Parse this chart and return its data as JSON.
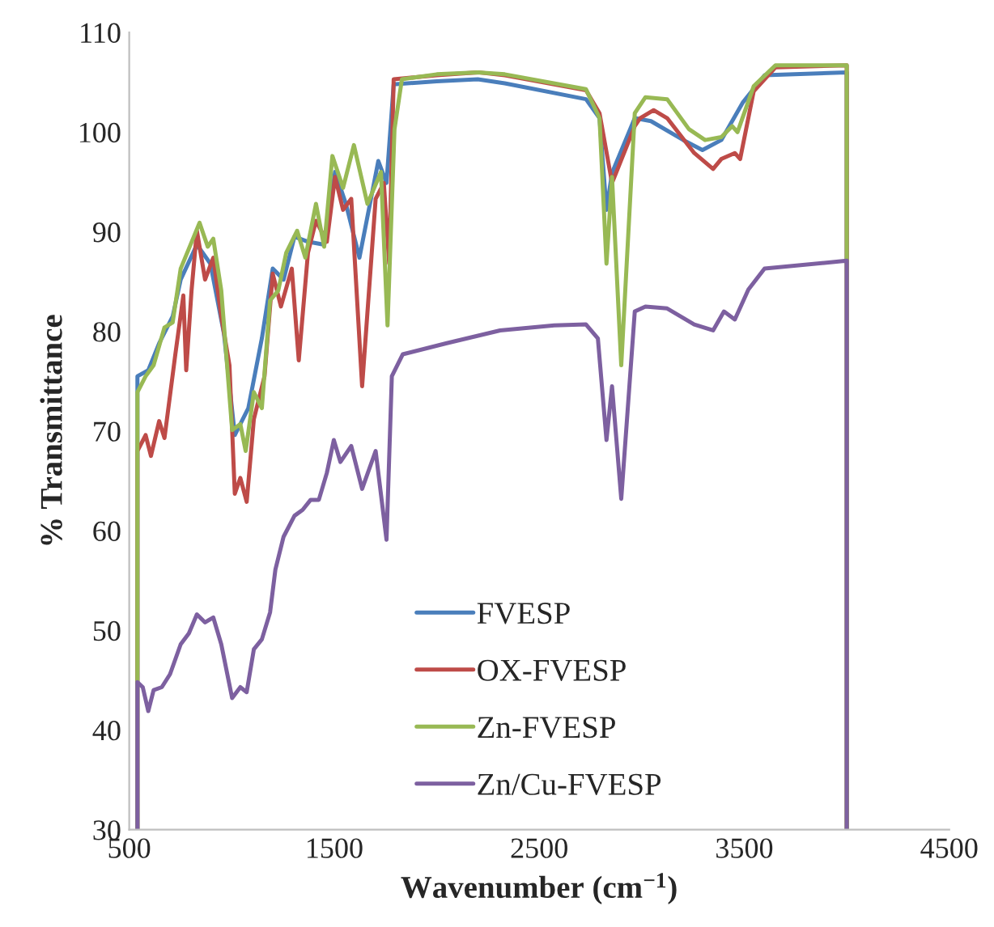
{
  "chart_data": {
    "type": "line",
    "xlabel": "Wavenumber (cm$^{−1}$)",
    "ylabel": "% Transmittance",
    "xlim": [
      500,
      4500
    ],
    "xticks": [
      500,
      1500,
      2500,
      3500,
      4500
    ],
    "ylim": [
      30,
      110
    ],
    "yticks": [
      30,
      40,
      50,
      60,
      70,
      80,
      90,
      100,
      110
    ],
    "grid": false,
    "legend": "bottom",
    "marker": "none",
    "line_style": "solid",
    "series": [
      {
        "name": "FVESP",
        "color": "#4a7ebb",
        "x": [
          540,
          540,
          593,
          646,
          712,
          751,
          830,
          896,
          962,
          1015,
          1081,
          1147,
          1200,
          1253,
          1306,
          1372,
          1451,
          1504,
          1557,
          1623,
          1715,
          1755,
          1790,
          2000,
          2200,
          2332,
          2728,
          2794,
          2828,
          2855,
          2900,
          2966,
          3045,
          3203,
          3296,
          3388,
          3494,
          3599,
          4000,
          4000
        ],
        "values": [
          30,
          75.5,
          76.1,
          78.8,
          81.5,
          85.2,
          88.7,
          86.8,
          79.8,
          69.6,
          72.3,
          79.3,
          86.3,
          85.2,
          89.5,
          89.0,
          88.7,
          96.0,
          92.8,
          87.4,
          97.1,
          94.9,
          104.8,
          105.1,
          105.3,
          104.9,
          103.3,
          101.4,
          92.2,
          95.9,
          null,
          101.4,
          101.1,
          99.2,
          98.2,
          99.2,
          103.0,
          105.7,
          106.0,
          30
        ]
      },
      {
        "name": "OX-FVESP",
        "color": "#be4b48",
        "x": [
          540,
          540,
          580,
          606,
          646,
          672,
          725,
          764,
          778,
          804,
          830,
          870,
          910,
          949,
          989,
          1015,
          1042,
          1073,
          1108,
          1160,
          1200,
          1240,
          1293,
          1327,
          1372,
          1411,
          1464,
          1504,
          1543,
          1583,
          1636,
          1702,
          1742,
          1768,
          1790,
          2000,
          2200,
          2332,
          2728,
          2794,
          2828,
          2855,
          2900,
          2966,
          2992,
          3058,
          3124,
          3256,
          3348,
          3388,
          3454,
          3480,
          3546,
          3652,
          4000,
          4000
        ],
        "values": [
          30,
          68.0,
          69.6,
          67.5,
          71.0,
          69.3,
          77.7,
          83.6,
          76.1,
          84.1,
          90.1,
          85.2,
          87.4,
          81.5,
          76.6,
          63.7,
          65.3,
          62.9,
          71.2,
          75.5,
          85.8,
          82.5,
          86.3,
          77.1,
          87.9,
          91.1,
          89.0,
          95.5,
          92.2,
          93.3,
          74.5,
          93.3,
          94.9,
          86.8,
          105.3,
          105.7,
          106.0,
          105.7,
          104.2,
          101.9,
          null,
          94.9,
          null,
          100.6,
          101.4,
          102.2,
          101.4,
          97.9,
          96.3,
          97.3,
          97.9,
          97.3,
          104.1,
          106.5,
          106.7,
          30
        ]
      },
      {
        "name": "Zn-FVESP",
        "color": "#98b954",
        "x": [
          540,
          540,
          580,
          619,
          672,
          712,
          751,
          843,
          883,
          910,
          949,
          1002,
          1042,
          1068,
          1108,
          1147,
          1187,
          1227,
          1266,
          1319,
          1359,
          1411,
          1451,
          1491,
          1543,
          1596,
          1662,
          1728,
          1760,
          1794,
          1830,
          2000,
          2200,
          2332,
          2728,
          2794,
          2828,
          2855,
          2900,
          2966,
          3018,
          3124,
          3230,
          3309,
          3388,
          3441,
          3467,
          3546,
          3652,
          4000,
          4000
        ],
        "values": [
          30,
          73.9,
          75.5,
          76.6,
          80.4,
          80.9,
          86.3,
          90.9,
          88.5,
          89.3,
          84.1,
          70.1,
          70.7,
          68.0,
          73.9,
          72.3,
          83.1,
          84.1,
          87.9,
          90.1,
          87.4,
          92.8,
          88.5,
          97.6,
          94.4,
          98.7,
          92.8,
          96.0,
          80.6,
          100.3,
          105.3,
          105.8,
          106.0,
          105.8,
          104.3,
          101.4,
          86.8,
          95.5,
          76.6,
          101.9,
          103.5,
          103.3,
          100.3,
          99.2,
          99.5,
          100.6,
          100.0,
          104.6,
          106.7,
          106.7,
          30
        ]
      },
      {
        "name": "Zn/Cu-FVESP",
        "color": "#7d60a0",
        "x": [
          540,
          540,
          566,
          593,
          619,
          659,
          699,
          751,
          791,
          830,
          870,
          910,
          949,
          1002,
          1042,
          1073,
          1108,
          1147,
          1187,
          1213,
          1253,
          1306,
          1346,
          1385,
          1425,
          1464,
          1498,
          1530,
          1583,
          1636,
          1702,
          1755,
          1781,
          1834,
          2045,
          2309,
          2573,
          2728,
          2786,
          2828,
          2855,
          2900,
          2966,
          3018,
          3124,
          3256,
          3348,
          3401,
          3454,
          3520,
          3599,
          4000,
          4000
        ],
        "values": [
          30,
          44.8,
          44.3,
          41.9,
          44.0,
          44.3,
          45.6,
          48.6,
          49.7,
          51.6,
          50.8,
          51.3,
          48.6,
          43.2,
          44.3,
          43.8,
          48.1,
          49.1,
          51.8,
          56.1,
          59.4,
          61.5,
          62.1,
          63.1,
          63.1,
          65.8,
          69.1,
          66.9,
          68.5,
          64.2,
          68.0,
          59.1,
          75.5,
          77.7,
          78.8,
          80.1,
          80.6,
          80.7,
          79.3,
          69.1,
          74.5,
          63.2,
          82.0,
          82.5,
          82.3,
          80.7,
          80.1,
          82.0,
          81.2,
          84.2,
          86.3,
          87.1,
          30
        ]
      }
    ]
  }
}
